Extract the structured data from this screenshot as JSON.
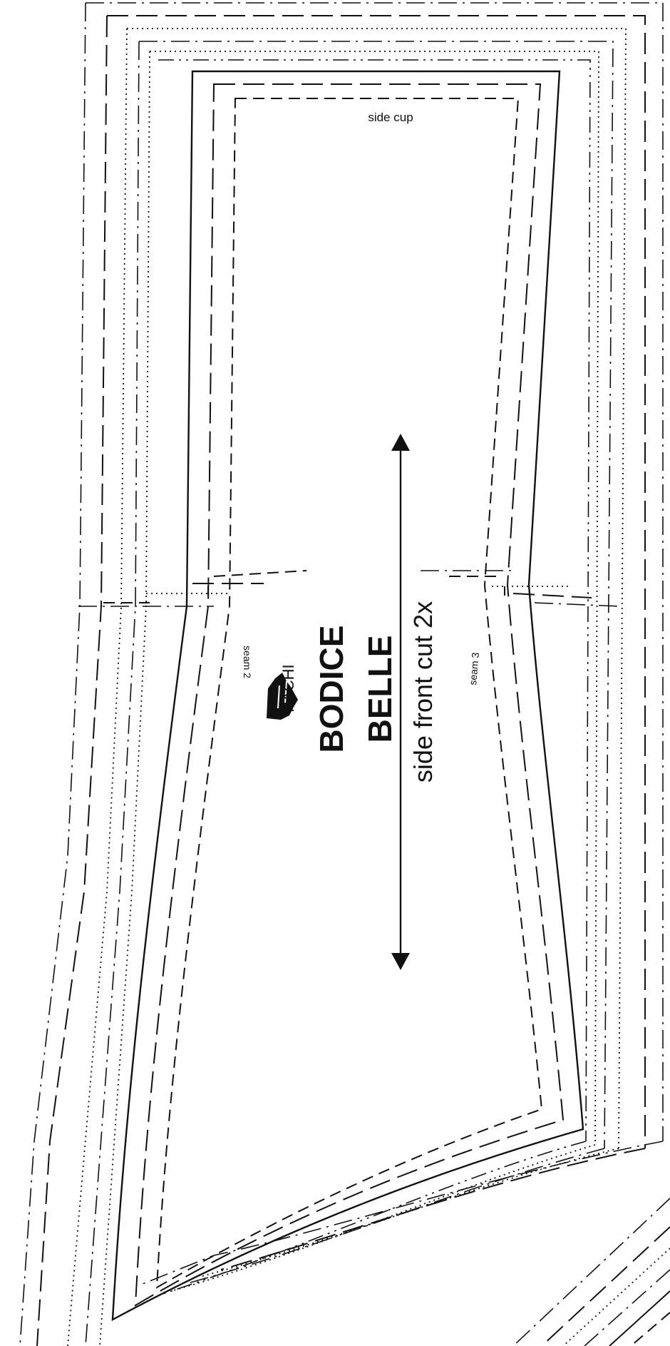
{
  "piece": {
    "label_side_cup": "side cup",
    "label_seam_2": "seam 2",
    "label_seam_3": "seam 3",
    "title_line_1": "BODICE",
    "title_line_2": "BELLE",
    "instruction": "side front cut 2x"
  },
  "logo": {
    "text": "KACHI",
    "icon": "hand-logo-icon"
  },
  "grainline": {
    "icon": "double-arrow-icon"
  }
}
